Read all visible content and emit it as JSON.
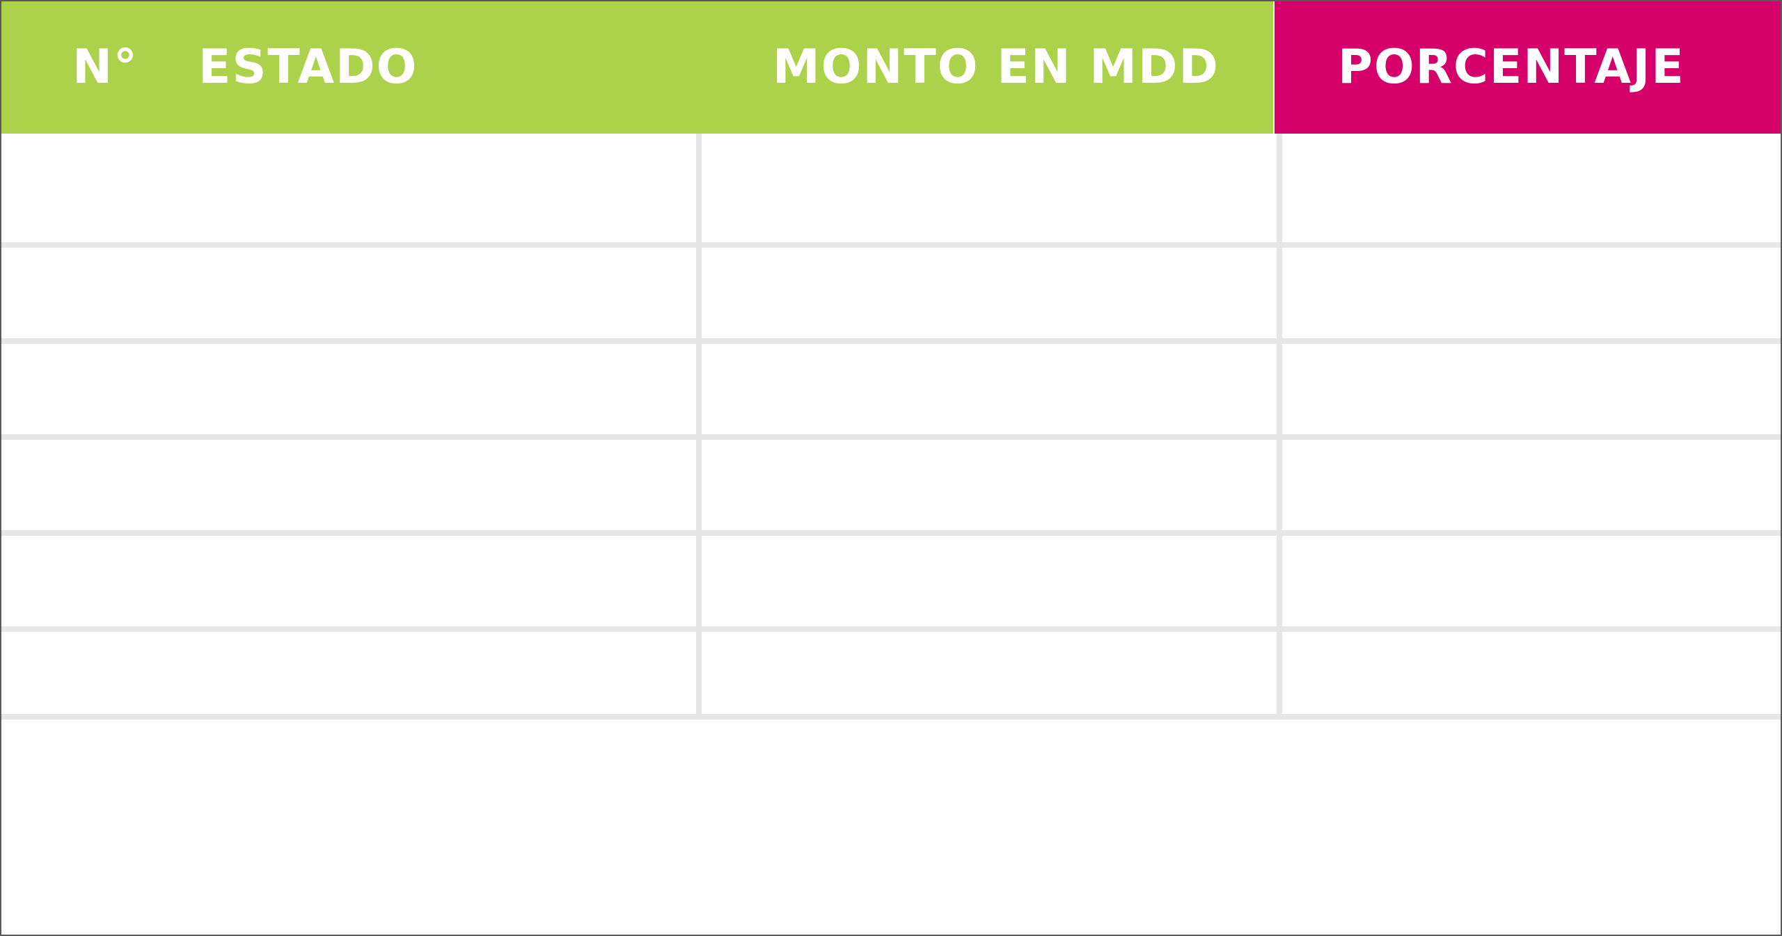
{
  "table": {
    "header": {
      "number_label": "N°",
      "estado_label": "ESTADO",
      "monto_label": "MONTO EN MDD",
      "porcentaje_label": "PORCENTAJE"
    },
    "rows": [
      {
        "estado": "",
        "monto": "",
        "porcentaje": ""
      },
      {
        "estado": "",
        "monto": "",
        "porcentaje": ""
      },
      {
        "estado": "",
        "monto": "",
        "porcentaje": ""
      },
      {
        "estado": "",
        "monto": "",
        "porcentaje": ""
      },
      {
        "estado": "",
        "monto": "",
        "porcentaje": ""
      },
      {
        "estado": "",
        "monto": "",
        "porcentaje": ""
      }
    ]
  },
  "colors": {
    "header_green": "#acd14a",
    "header_magenta": "#d5006a",
    "grid_line": "#e6e6e6",
    "header_text": "#ffffff"
  }
}
